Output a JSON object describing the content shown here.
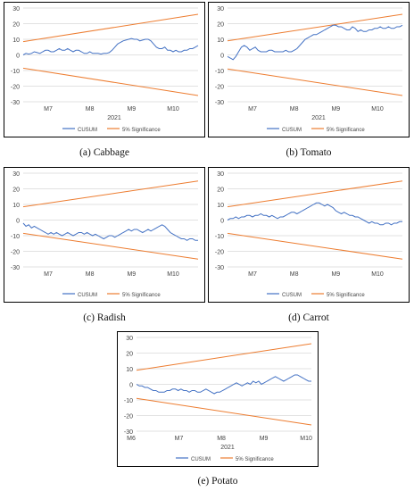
{
  "colors": {
    "cusum": "#4472C4",
    "significance": "#ED7D31",
    "grid": "#d9d9d9",
    "frame": "#000000",
    "text": "#444444"
  },
  "chart_data": [
    {
      "type": "line",
      "caption": "(a) Cabbage",
      "ylim": [
        -30,
        30
      ],
      "yticks": [
        30,
        20,
        10,
        0,
        -10,
        -20,
        -30
      ],
      "xticks": [
        "M7",
        "M8",
        "M9",
        "M10"
      ],
      "xlabel": "2021",
      "legend": [
        "CUSUM",
        "5% Significance"
      ],
      "legend_position": "bottom",
      "series": [
        {
          "name": "CUSUM",
          "values": [
            0,
            1,
            0.5,
            1,
            2,
            1.5,
            1,
            2,
            3,
            3,
            2,
            2,
            3,
            4,
            3,
            3,
            4,
            3,
            2,
            3,
            3,
            2,
            1,
            1,
            2,
            1,
            1,
            1,
            0.5,
            1,
            1,
            1.5,
            3,
            5,
            7,
            8,
            9,
            9.5,
            10,
            10.5,
            10,
            10,
            9,
            9.5,
            10,
            10,
            9,
            7,
            5,
            4,
            4,
            5,
            3,
            3,
            2,
            3,
            2,
            2,
            3,
            3,
            4,
            4,
            5,
            6
          ]
        },
        {
          "name": "5% Significance",
          "lines": [
            [
              8.5,
              26
            ],
            [
              -8.5,
              -26
            ]
          ]
        }
      ]
    },
    {
      "type": "line",
      "caption": "(b) Tomato",
      "ylim": [
        -30,
        30
      ],
      "yticks": [
        30,
        20,
        10,
        0,
        -10,
        -20,
        -30
      ],
      "xticks": [
        "M7",
        "M8",
        "M9",
        "M10"
      ],
      "xlabel": "2021",
      "legend": [
        "CUSUM",
        "5% Significance"
      ],
      "legend_position": "bottom",
      "series": [
        {
          "name": "CUSUM",
          "values": [
            -1,
            -2,
            -3,
            -1,
            2,
            5,
            6,
            5,
            3,
            4,
            5,
            3,
            2,
            2,
            2,
            3,
            3,
            2,
            2,
            2,
            2,
            3,
            2,
            2,
            3,
            4,
            6,
            8,
            10,
            11,
            12,
            13,
            13,
            14,
            15,
            16,
            17,
            18,
            19,
            19,
            18,
            18,
            17,
            16,
            16,
            18,
            17,
            15,
            16,
            15,
            15,
            16,
            16,
            17,
            17,
            18,
            17,
            17,
            18,
            17,
            17,
            18,
            18,
            19
          ]
        },
        {
          "name": "5% Significance",
          "lines": [
            [
              9,
              26
            ],
            [
              -9,
              -26
            ]
          ]
        }
      ]
    },
    {
      "type": "line",
      "caption": "(c) Radish",
      "ylim": [
        -30,
        30
      ],
      "yticks": [
        30,
        20,
        10,
        0,
        -10,
        -20,
        -30
      ],
      "xticks": [
        "M7",
        "M8",
        "M9",
        "M10"
      ],
      "xlabel": "",
      "legend": [
        "CUSUM",
        "5% Significance"
      ],
      "legend_position": "bottom",
      "series": [
        {
          "name": "CUSUM",
          "values": [
            -2,
            -4,
            -3,
            -5,
            -4,
            -5,
            -6,
            -7,
            -8,
            -9,
            -8,
            -9,
            -8,
            -9,
            -10,
            -9,
            -8,
            -9,
            -10,
            -9,
            -8,
            -8,
            -9,
            -8,
            -9,
            -10,
            -9,
            -10,
            -11,
            -12,
            -11,
            -10,
            -10,
            -11,
            -10,
            -9,
            -8,
            -7,
            -6,
            -7,
            -6,
            -6,
            -7,
            -8,
            -7,
            -6,
            -7,
            -6,
            -5,
            -4,
            -3,
            -4,
            -6,
            -8,
            -9,
            -10,
            -11,
            -12,
            -12,
            -13,
            -12,
            -12,
            -13,
            -13
          ]
        },
        {
          "name": "5% Significance",
          "lines": [
            [
              8.5,
              25
            ],
            [
              -8.5,
              -25
            ]
          ]
        }
      ]
    },
    {
      "type": "line",
      "caption": "(d) Carrot",
      "ylim": [
        -30,
        30
      ],
      "yticks": [
        30,
        20,
        10,
        0,
        -10,
        -20,
        -30
      ],
      "xticks": [
        "M7",
        "M8",
        "M9",
        "M10"
      ],
      "xlabel": "",
      "legend": [
        "CUSUM",
        "5% Significance"
      ],
      "legend_position": "bottom",
      "series": [
        {
          "name": "CUSUM",
          "values": [
            0,
            1,
            1,
            2,
            1,
            2,
            2,
            3,
            3,
            2,
            3,
            3,
            4,
            3,
            3,
            2,
            3,
            2,
            1,
            2,
            2,
            3,
            4,
            5,
            5,
            4,
            5,
            6,
            7,
            8,
            9,
            10,
            11,
            11,
            10,
            9,
            10,
            9,
            8,
            6,
            5,
            4,
            5,
            4,
            3,
            3,
            2,
            2,
            1,
            0,
            -1,
            -2,
            -1,
            -2,
            -2,
            -3,
            -3,
            -2,
            -2,
            -3,
            -2,
            -2,
            -1,
            -1
          ]
        },
        {
          "name": "5% Significance",
          "lines": [
            [
              8.5,
              25
            ],
            [
              -8.5,
              -25
            ]
          ]
        }
      ]
    },
    {
      "type": "line",
      "caption": "(e) Potato",
      "ylim": [
        -30,
        30
      ],
      "yticks": [
        30,
        20,
        10,
        0,
        -10,
        -20,
        -30
      ],
      "xticks": [
        "M6",
        "M7",
        "M8",
        "M9",
        "M10"
      ],
      "xlabel": "2021",
      "legend": [
        "CUSUM",
        "5% Significance"
      ],
      "legend_position": "bottom",
      "series": [
        {
          "name": "CUSUM",
          "values": [
            0,
            -1,
            -1,
            -2,
            -2,
            -3,
            -4,
            -4,
            -5,
            -5,
            -5,
            -4,
            -4,
            -3,
            -3,
            -4,
            -3,
            -4,
            -4,
            -5,
            -4,
            -4,
            -5,
            -5,
            -4,
            -3,
            -4,
            -5,
            -6,
            -5,
            -5,
            -4,
            -3,
            -2,
            -1,
            0,
            1,
            0,
            -1,
            0,
            1,
            0,
            2,
            1,
            2,
            0,
            1,
            2,
            3,
            4,
            5,
            4,
            3,
            2,
            3,
            4,
            5,
            6,
            6,
            5,
            4,
            3,
            2,
            2
          ]
        },
        {
          "name": "5% Significance",
          "lines": [
            [
              9,
              26
            ],
            [
              -9,
              -26
            ]
          ]
        }
      ]
    }
  ]
}
